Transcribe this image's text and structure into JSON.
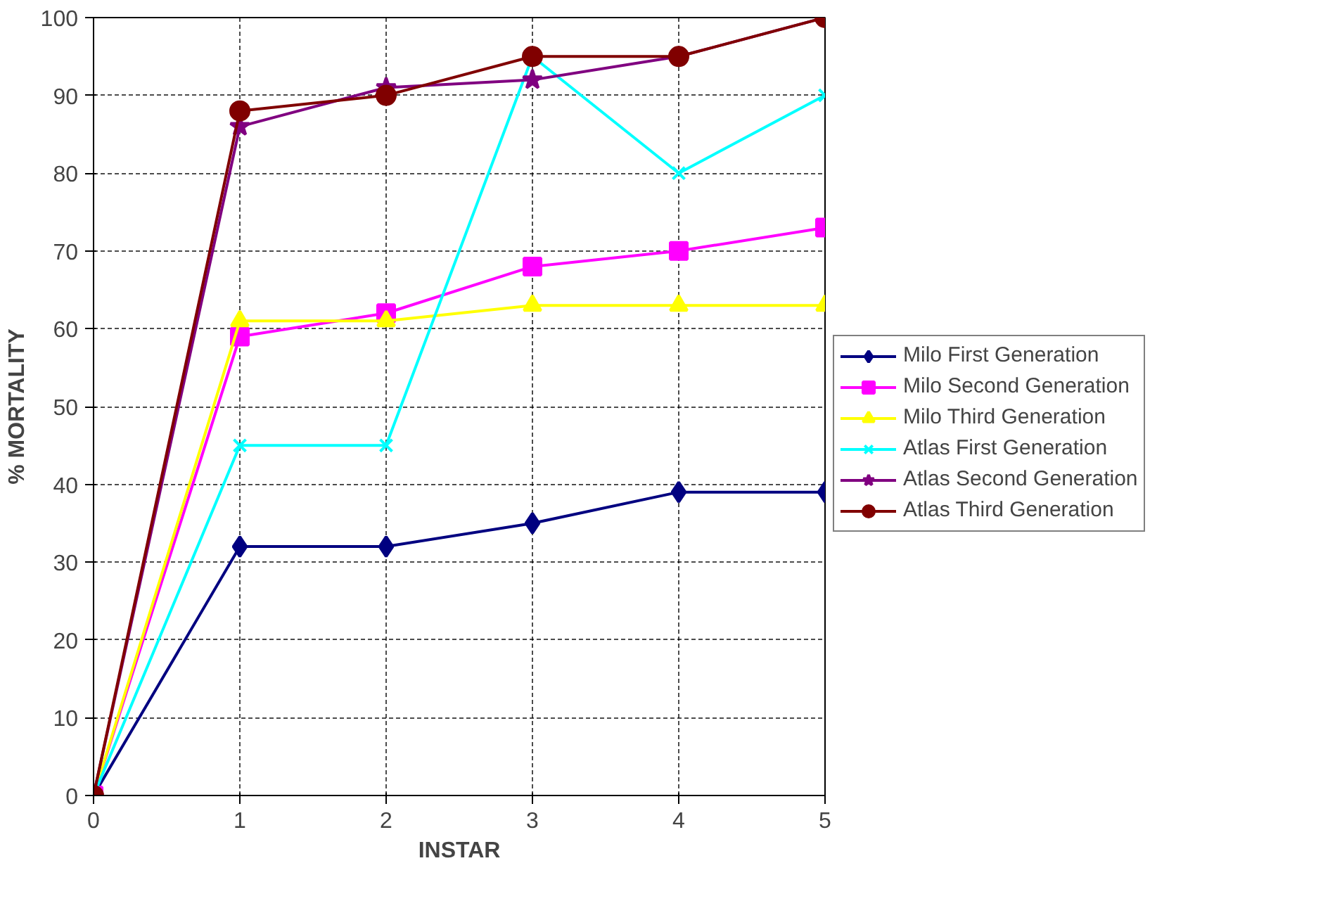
{
  "chart_data": {
    "type": "line",
    "xlabel": "INSTAR",
    "ylabel": "% MORTALITY",
    "x": [
      0,
      1,
      2,
      3,
      4,
      5
    ],
    "xlim": [
      0,
      5
    ],
    "xticks": [
      0,
      1,
      2,
      3,
      4,
      5
    ],
    "ylim": [
      0,
      100
    ],
    "yticks": [
      0,
      10,
      20,
      30,
      40,
      50,
      60,
      70,
      80,
      90,
      100
    ],
    "grid": true,
    "legend": "right",
    "line_style": "solid",
    "series": [
      {
        "name": "Milo First Generation",
        "color": "#000080",
        "marker": "diamond",
        "values": [
          0,
          32,
          32,
          35,
          39,
          39
        ]
      },
      {
        "name": "Milo Second Generation",
        "color": "#ff00ff",
        "marker": "square",
        "values": [
          0,
          59,
          62,
          68,
          70,
          73
        ]
      },
      {
        "name": "Milo Third Generation",
        "color": "#ffff00",
        "marker": "triangle",
        "values": [
          0,
          61,
          61,
          63,
          63,
          63
        ]
      },
      {
        "name": "Atlas First Generation",
        "color": "#00ffff",
        "marker": "cross",
        "values": [
          0,
          45,
          45,
          95,
          80,
          90
        ]
      },
      {
        "name": "Atlas Second Generation",
        "color": "#800080",
        "marker": "star",
        "values": [
          0,
          86,
          91,
          92,
          95,
          100
        ]
      },
      {
        "name": "Atlas Third Generation",
        "color": "#800000",
        "marker": "circle",
        "values": [
          0,
          88,
          90,
          95,
          95,
          100
        ]
      }
    ]
  }
}
